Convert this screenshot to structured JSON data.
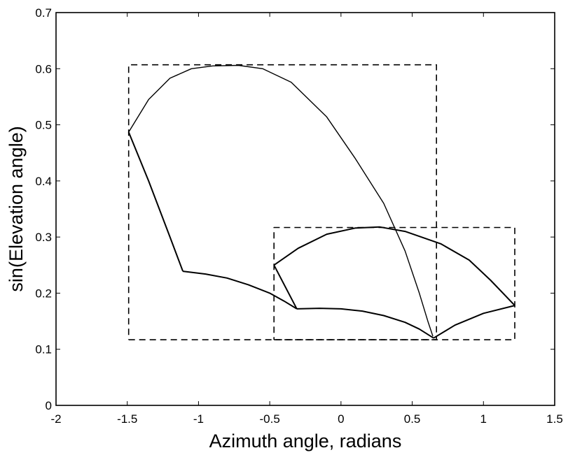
{
  "chart_data": {
    "type": "line",
    "title": "",
    "xlabel": "Azimuth angle, radians",
    "ylabel": "sin(Elevation angle)",
    "xlim": [
      -2,
      1.5
    ],
    "ylim": [
      0,
      0.7
    ],
    "grid": false,
    "x_ticks": [
      -2,
      -1.5,
      -1,
      -0.5,
      0,
      0.5,
      1,
      1.5
    ],
    "x_tick_labels": [
      "-2",
      "-1.5",
      "-1",
      "-0.5",
      "0",
      "0.5",
      "1",
      "1.5"
    ],
    "y_ticks": [
      0,
      0.1,
      0.2,
      0.3,
      0.4,
      0.5,
      0.6,
      0.7
    ],
    "y_tick_labels": [
      "0",
      "0.1",
      "0.2",
      "0.3",
      "0.4",
      "0.5",
      "0.6",
      "0.7"
    ],
    "series": [
      {
        "style": "solid",
        "width": 1.4,
        "points": [
          [
            -1.49,
            0.487
          ],
          [
            -1.35,
            0.545
          ],
          [
            -1.2,
            0.583
          ],
          [
            -1.05,
            0.6
          ],
          [
            -0.9,
            0.605
          ],
          [
            -0.72,
            0.606
          ],
          [
            -0.55,
            0.6
          ],
          [
            -0.35,
            0.576
          ],
          [
            -0.1,
            0.514
          ],
          [
            0.1,
            0.44
          ],
          [
            0.3,
            0.36
          ],
          [
            0.45,
            0.275
          ],
          [
            0.55,
            0.2
          ],
          [
            0.61,
            0.15
          ],
          [
            0.645,
            0.123
          ]
        ]
      },
      {
        "style": "solid",
        "width": 2,
        "points": [
          [
            -1.49,
            0.487
          ],
          [
            -1.35,
            0.4
          ],
          [
            -1.2,
            0.3
          ],
          [
            -1.11,
            0.239
          ]
        ]
      },
      {
        "style": "solid",
        "width": 2,
        "points": [
          [
            -1.11,
            0.239
          ],
          [
            -0.95,
            0.234
          ],
          [
            -0.8,
            0.227
          ],
          [
            -0.65,
            0.215
          ],
          [
            -0.5,
            0.2
          ],
          [
            -0.4,
            0.186
          ],
          [
            -0.31,
            0.172
          ]
        ]
      },
      {
        "style": "solid",
        "width": 2,
        "points": [
          [
            -0.47,
            0.25
          ],
          [
            -0.31,
            0.172
          ]
        ]
      },
      {
        "style": "solid",
        "width": 2,
        "points": [
          [
            -0.31,
            0.172
          ],
          [
            -0.15,
            0.173
          ],
          [
            0.0,
            0.172
          ],
          [
            0.15,
            0.168
          ],
          [
            0.3,
            0.16
          ],
          [
            0.45,
            0.148
          ],
          [
            0.55,
            0.136
          ],
          [
            0.65,
            0.12
          ]
        ]
      },
      {
        "style": "solid",
        "width": 2,
        "points": [
          [
            -0.47,
            0.25
          ],
          [
            -0.3,
            0.28
          ],
          [
            -0.1,
            0.305
          ],
          [
            0.1,
            0.316
          ],
          [
            0.27,
            0.318
          ],
          [
            0.45,
            0.31
          ],
          [
            0.7,
            0.288
          ],
          [
            0.9,
            0.259
          ],
          [
            1.05,
            0.223
          ],
          [
            1.22,
            0.178
          ]
        ]
      },
      {
        "style": "solid",
        "width": 2,
        "points": [
          [
            0.65,
            0.12
          ],
          [
            0.8,
            0.143
          ],
          [
            1.0,
            0.164
          ],
          [
            1.22,
            0.178
          ]
        ]
      },
      {
        "style": "dashed",
        "width": 1.6,
        "points": [
          [
            -1.49,
            0.117
          ],
          [
            0.67,
            0.117
          ],
          [
            0.67,
            0.607
          ],
          [
            -1.49,
            0.607
          ],
          [
            -1.49,
            0.117
          ]
        ]
      },
      {
        "style": "dashed",
        "width": 1.6,
        "points": [
          [
            -0.47,
            0.117
          ],
          [
            1.22,
            0.117
          ],
          [
            1.22,
            0.317
          ],
          [
            -0.47,
            0.317
          ],
          [
            -0.47,
            0.117
          ]
        ]
      }
    ]
  }
}
